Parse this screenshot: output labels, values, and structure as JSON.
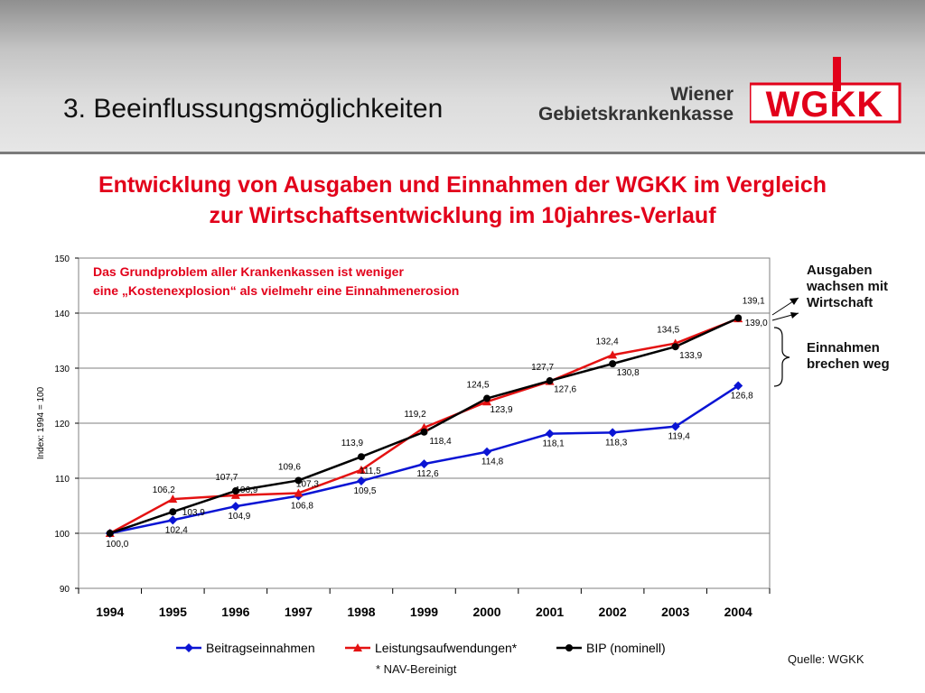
{
  "slide": {
    "title": "3. Beeinflussungsmöglichkeiten",
    "logo_line1": "Wiener",
    "logo_line2": "Gebietskrankenkasse",
    "logo_mark": "WGKK",
    "chart_title_line1": "Entwicklung von Ausgaben und Einnahmen der WGKK im Vergleich",
    "chart_title_line2": "zur Wirtschaftsentwicklung im 10jahres-Verlauf",
    "callout_line1": "Das Grundproblem aller Krankenkassen ist weniger",
    "callout_line2": "eine „Kostenexplosion“ als vielmehr eine Einnahmenerosion",
    "annotation_expenses": [
      "Ausgaben",
      "wachsen mit",
      "Wirtschaft"
    ],
    "annotation_income": [
      "Einnahmen",
      "brechen weg"
    ],
    "footnote": "* NAV-Bereinigt",
    "source": "Quelle: WGKK"
  },
  "colors": {
    "accent_red": "#e2001a",
    "beitrag": "#0a14d4",
    "leistung": "#e41212",
    "bip": "#000000"
  },
  "chart_data": {
    "type": "line",
    "categories": [
      "1994",
      "1995",
      "1996",
      "1997",
      "1998",
      "1999",
      "2000",
      "2001",
      "2002",
      "2003",
      "2004"
    ],
    "ylabel": "Index: 1994 = 100",
    "ylim": [
      90,
      150
    ],
    "yticks": [
      90,
      100,
      110,
      120,
      130,
      140,
      150
    ],
    "grid": true,
    "legend_position": "bottom",
    "series": [
      {
        "name": "Beitragseinnahmen",
        "marker": "diamond",
        "color": "#0a14d4",
        "values": [
          100.0,
          102.4,
          104.9,
          106.8,
          109.5,
          112.6,
          114.8,
          118.1,
          118.3,
          119.4,
          126.8
        ],
        "labels": [
          "100,0",
          "102,4",
          "104,9",
          "106,8",
          "109,5",
          "112,6",
          "114,8",
          "118,1",
          "118,3",
          "119,4",
          "126,8"
        ]
      },
      {
        "name": "Leistungsaufwendungen*",
        "marker": "triangle",
        "color": "#e41212",
        "values": [
          100.0,
          106.2,
          106.9,
          107.3,
          111.5,
          119.2,
          123.9,
          127.6,
          132.4,
          134.5,
          139.0
        ],
        "labels": [
          "",
          "106,2",
          "106,9",
          "107,3",
          "111,5",
          "119,2",
          "123,9",
          "127,6",
          "132,4",
          "134,5",
          "139,0"
        ]
      },
      {
        "name": "BIP (nominell)",
        "marker": "circle",
        "color": "#000000",
        "values": [
          100.0,
          103.9,
          107.7,
          109.6,
          113.9,
          118.4,
          124.5,
          127.7,
          130.8,
          133.9,
          139.1
        ],
        "labels": [
          "",
          "103,9",
          "107,7",
          "109,6",
          "113,9",
          "118,4",
          "124,5",
          "127,7",
          "130,8",
          "133,9",
          "139,1"
        ]
      }
    ]
  }
}
